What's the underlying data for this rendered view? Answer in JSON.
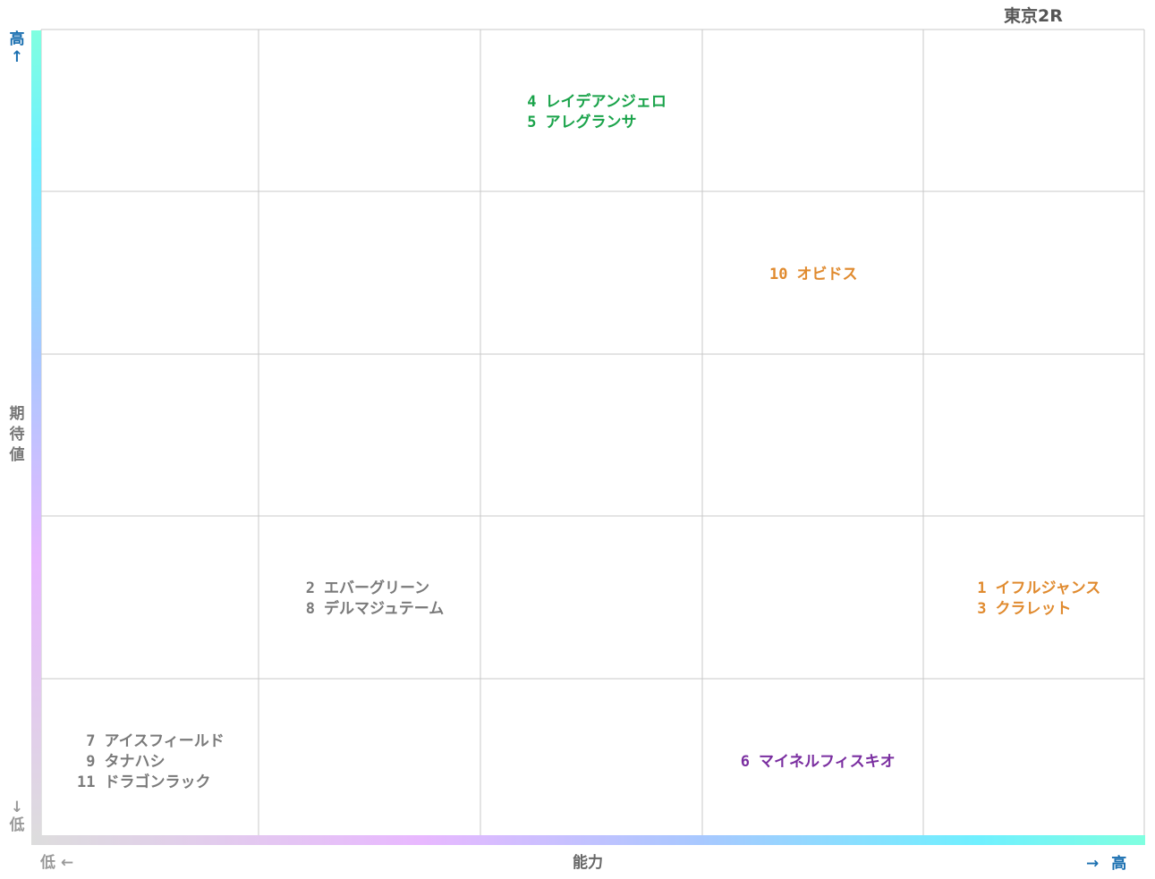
{
  "title": "東京2R",
  "axes": {
    "y": {
      "label": "期待値",
      "high": "高↑",
      "low": "↓低"
    },
    "x": {
      "label": "能力",
      "low": "低 ←",
      "high_arrow": "→",
      "high": "高"
    }
  },
  "colors": {
    "grid": "#c8c8c8",
    "green": "#1aa34a",
    "orange": "#e08a2e",
    "gray": "#7a7a7a",
    "purple": "#7a2ea0",
    "axis_gradient": [
      "#dddddd",
      "#e8b8ff",
      "#a8c8ff",
      "#70f0ff",
      "#80ffe0"
    ]
  },
  "chart_data": {
    "type": "scatter",
    "title": "東京2R",
    "xlabel": "能力",
    "ylabel": "期待値",
    "grid": {
      "columns": 5,
      "rows": 5,
      "visible": true
    },
    "xlim": [
      0,
      5
    ],
    "ylim": [
      0,
      5
    ],
    "groups": [
      {
        "col": 3,
        "row": 5,
        "color": "green",
        "horses": [
          {
            "number": "4",
            "name": "レイデアンジェロ"
          },
          {
            "number": "5",
            "name": "アレグランサ"
          }
        ]
      },
      {
        "col": 4,
        "row": 4,
        "color": "orange",
        "horses": [
          {
            "number": "10",
            "name": "オビドス"
          }
        ]
      },
      {
        "col": 2,
        "row": 2,
        "color": "gray",
        "horses": [
          {
            "number": "2",
            "name": "エバーグリーン"
          },
          {
            "number": "8",
            "name": "デルマジュテーム"
          }
        ]
      },
      {
        "col": 5,
        "row": 2,
        "color": "orange",
        "horses": [
          {
            "number": "1",
            "name": "イフルジャンス"
          },
          {
            "number": "3",
            "name": "クラレット"
          }
        ]
      },
      {
        "col": 1,
        "row": 1,
        "color": "gray",
        "horses": [
          {
            "number": "7",
            "name": "アイスフィールド"
          },
          {
            "number": "9",
            "name": "タナハシ"
          },
          {
            "number": "11",
            "name": "ドラゴンラック"
          }
        ]
      },
      {
        "col": 4,
        "row": 1,
        "color": "purple",
        "horses": [
          {
            "number": "6",
            "name": "マイネルフィスキオ"
          }
        ]
      }
    ]
  }
}
